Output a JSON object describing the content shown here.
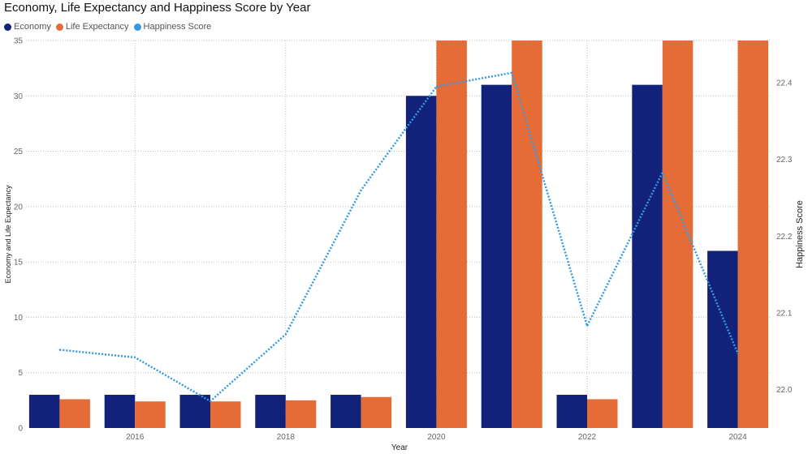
{
  "chart_data": {
    "type": "bar",
    "title": "Economy, Life Expectancy and Happiness Score by Year",
    "xlabel": "Year",
    "ylabel": "Economy and Life Expectancy",
    "y2label": "Happiness Score",
    "legend_position": "top-left",
    "grid": true,
    "x": [
      2015,
      2016,
      2017,
      2018,
      2019,
      2020,
      2021,
      2022,
      2023,
      2024
    ],
    "x_ticks": [
      "2016",
      "2018",
      "2020",
      "2022",
      "2024"
    ],
    "ylim": [
      0,
      35
    ],
    "y_ticks": [
      "0",
      "5",
      "10",
      "15",
      "20",
      "25",
      "30",
      "35"
    ],
    "y2lim": [
      21.95,
      22.455
    ],
    "y2_ticks": [
      "22.0",
      "22.1",
      "22.2",
      "22.3",
      "22.4"
    ],
    "series": [
      {
        "name": "Economy",
        "kind": "bar",
        "axis": "left",
        "color": "#12217A",
        "values": [
          3.0,
          3.0,
          3.0,
          3.0,
          3.0,
          30.0,
          31.0,
          3.0,
          31.0,
          16.0
        ]
      },
      {
        "name": "Life Expectancy",
        "kind": "bar",
        "axis": "left",
        "color": "#E66C37",
        "values": [
          2.6,
          2.4,
          2.4,
          2.5,
          2.8,
          35,
          35,
          2.6,
          35,
          35
        ]
      },
      {
        "name": "Happiness Score",
        "kind": "line",
        "style": "dotted",
        "axis": "right",
        "color": "#3599E6",
        "values": [
          22.052,
          22.042,
          21.985,
          22.072,
          22.26,
          22.395,
          22.413,
          22.083,
          22.283,
          22.047
        ]
      }
    ]
  }
}
